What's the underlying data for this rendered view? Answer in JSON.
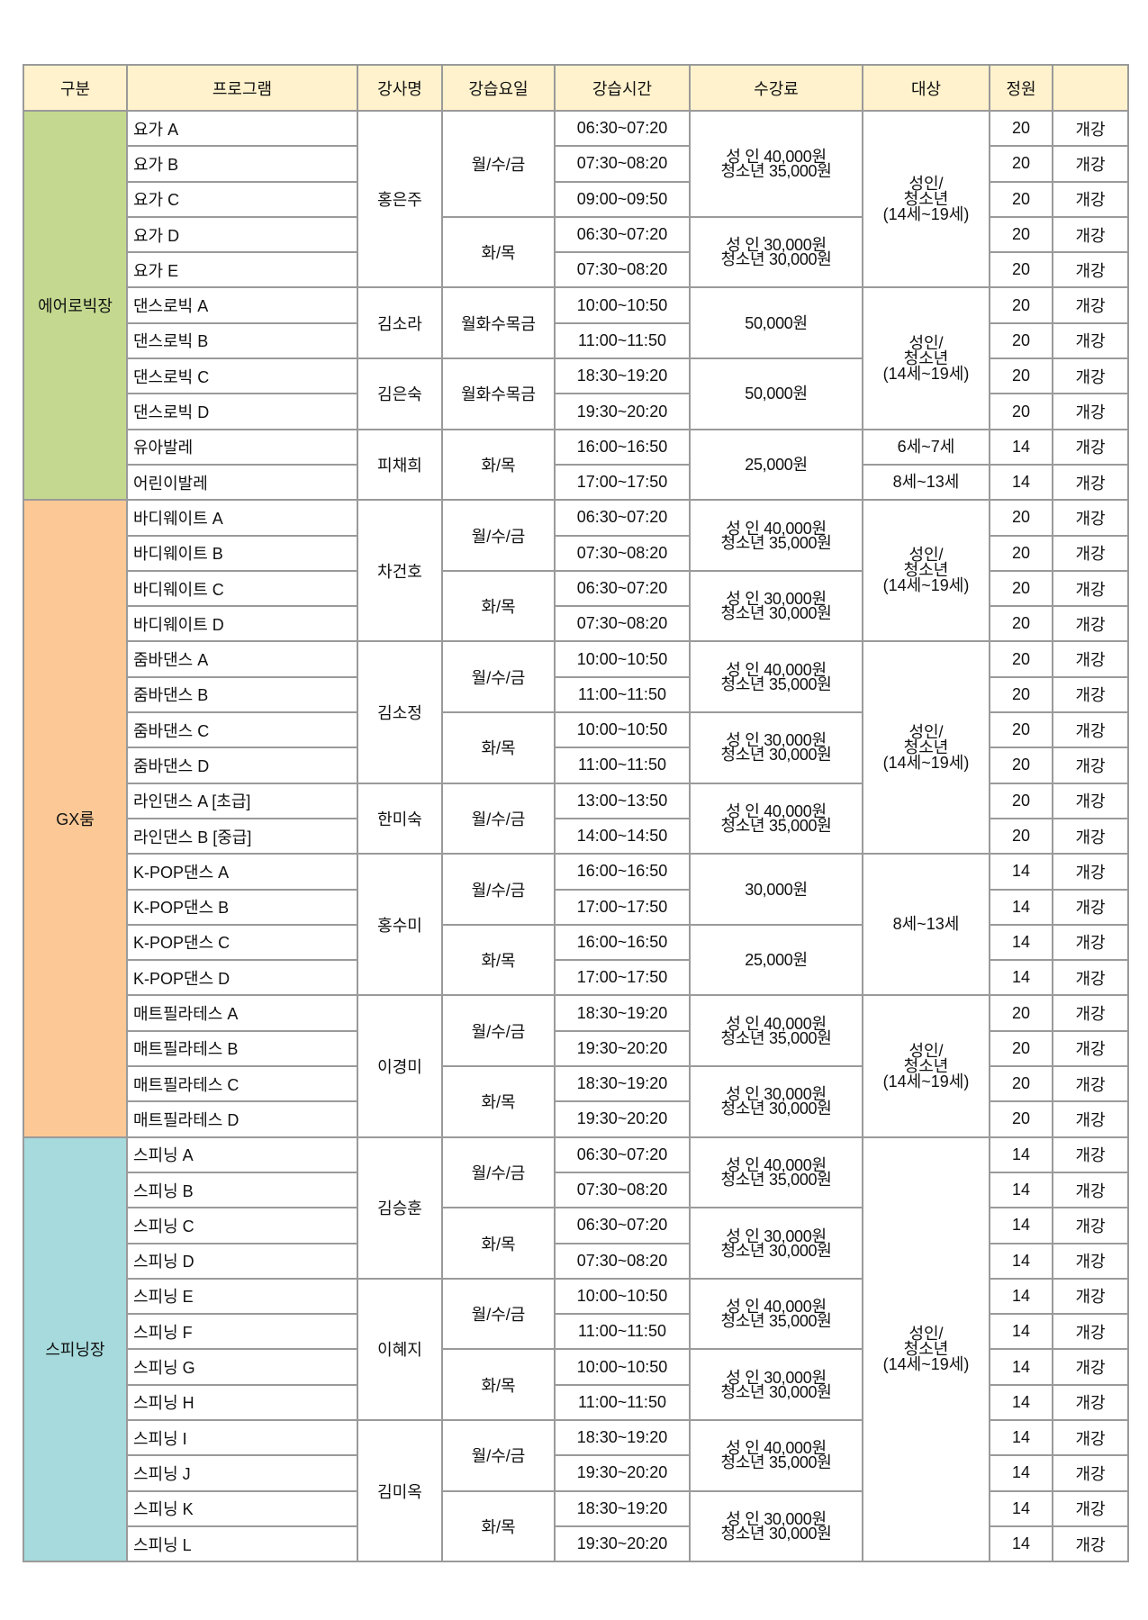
{
  "header": [
    "구분",
    "프로그램",
    "강사명",
    "강습요일",
    "강습시간",
    "수강료",
    "대상",
    "정원",
    ""
  ],
  "colors": {
    "header": "#fff2cc",
    "aerobic": "#c4d98f",
    "gx": "#fcc996",
    "spinning": "#a6dadc",
    "border": "#9a9a9a"
  },
  "sections": [
    {
      "name": "에어로빅장",
      "color": "#c4d98f",
      "rows": [
        {
          "program": "요가 A",
          "instructor": {
            "text": "홍은주",
            "span": 5
          },
          "days": {
            "text": "월/수/금",
            "span": 3
          },
          "time": "06:30~07:20",
          "fee": {
            "text": "성  인 40,000원\n청소년 35,000원",
            "span": 3
          },
          "target": {
            "text": "성인/\n청소년\n(14세~19세)",
            "span": 5
          },
          "capacity": "20",
          "status": "개강"
        },
        {
          "program": "요가 B",
          "time": "07:30~08:20",
          "capacity": "20",
          "status": "개강"
        },
        {
          "program": "요가 C",
          "time": "09:00~09:50",
          "capacity": "20",
          "status": "개강"
        },
        {
          "program": "요가 D",
          "days": {
            "text": "화/목",
            "span": 2
          },
          "time": "06:30~07:20",
          "fee": {
            "text": "성 인 30,000원\n청소년 30,000원",
            "span": 2
          },
          "capacity": "20",
          "status": "개강"
        },
        {
          "program": "요가 E",
          "time": "07:30~08:20",
          "capacity": "20",
          "status": "개강"
        },
        {
          "program": "댄스로빅 A",
          "instructor": {
            "text": "김소라",
            "span": 2
          },
          "days": {
            "text": "월화수목금",
            "span": 2
          },
          "time": "10:00~10:50",
          "fee": {
            "text": "50,000원",
            "span": 2
          },
          "target": {
            "text": "성인/\n청소년\n(14세~19세)",
            "span": 4
          },
          "capacity": "20",
          "status": "개강"
        },
        {
          "program": "댄스로빅 B",
          "time": "11:00~11:50",
          "capacity": "20",
          "status": "개강"
        },
        {
          "program": "댄스로빅 C",
          "instructor": {
            "text": "김은숙",
            "span": 2
          },
          "days": {
            "text": "월화수목금",
            "span": 2
          },
          "time": "18:30~19:20",
          "fee": {
            "text": "50,000원",
            "span": 2
          },
          "capacity": "20",
          "status": "개강"
        },
        {
          "program": "댄스로빅 D",
          "time": "19:30~20:20",
          "capacity": "20",
          "status": "개강"
        },
        {
          "program": "유아발레",
          "instructor": {
            "text": "피채희",
            "span": 2
          },
          "days": {
            "text": "화/목",
            "span": 2
          },
          "time": "16:00~16:50",
          "fee": {
            "text": "25,000원",
            "span": 2
          },
          "target": {
            "text": "6세~7세",
            "span": 1
          },
          "capacity": "14",
          "status": "개강"
        },
        {
          "program": "어린이발레",
          "time": "17:00~17:50",
          "target": {
            "text": "8세~13세",
            "span": 1
          },
          "capacity": "14",
          "status": "개강"
        }
      ]
    },
    {
      "name": "GX룸",
      "color": "#fcc996",
      "rows": [
        {
          "program": "바디웨이트 A",
          "instructor": {
            "text": "차건호",
            "span": 4
          },
          "days": {
            "text": "월/수/금",
            "span": 2
          },
          "time": "06:30~07:20",
          "fee": {
            "text": "성 인 40,000원\n청소년 35,000원",
            "span": 2
          },
          "target": {
            "text": "성인/\n청소년\n(14세~19세)",
            "span": 4
          },
          "capacity": "20",
          "status": "개강"
        },
        {
          "program": "바디웨이트 B",
          "time": "07:30~08:20",
          "capacity": "20",
          "status": "개강"
        },
        {
          "program": "바디웨이트 C",
          "days": {
            "text": "화/목",
            "span": 2
          },
          "time": "06:30~07:20",
          "fee": {
            "text": "성 인 30,000원\n청소년 30,000원",
            "span": 2
          },
          "capacity": "20",
          "status": "개강"
        },
        {
          "program": "바디웨이트 D",
          "time": "07:30~08:20",
          "capacity": "20",
          "status": "개강"
        },
        {
          "program": "줌바댄스 A",
          "instructor": {
            "text": "김소정",
            "span": 4
          },
          "days": {
            "text": "월/수/금",
            "span": 2
          },
          "time": "10:00~10:50",
          "fee": {
            "text": "성  인 40,000원\n청소년 35,000원",
            "span": 2
          },
          "target": {
            "text": "성인/\n청소년\n(14세~19세)",
            "span": 6
          },
          "capacity": "20",
          "status": "개강"
        },
        {
          "program": "줌바댄스 B",
          "time": "11:00~11:50",
          "capacity": "20",
          "status": "개강"
        },
        {
          "program": "줌바댄스 C",
          "days": {
            "text": "화/목",
            "span": 2
          },
          "time": "10:00~10:50",
          "fee": {
            "text": "성  인 30,000원\n청소년 30,000원",
            "span": 2
          },
          "capacity": "20",
          "status": "개강"
        },
        {
          "program": "줌바댄스 D",
          "time": "11:00~11:50",
          "capacity": "20",
          "status": "개강"
        },
        {
          "program": "라인댄스 A [초급]",
          "instructor": {
            "text": "한미숙",
            "span": 2
          },
          "days": {
            "text": "월/수/금",
            "span": 2
          },
          "time": "13:00~13:50",
          "fee": {
            "text": "성  인 40,000원\n청소년 35,000원",
            "span": 2
          },
          "capacity": "20",
          "status": "개강"
        },
        {
          "program": "라인댄스 B [중급]",
          "time": "14:00~14:50",
          "capacity": "20",
          "status": "개강"
        },
        {
          "program": "K-POP댄스 A",
          "instructor": {
            "text": "홍수미",
            "span": 4
          },
          "days": {
            "text": "월/수/금",
            "span": 2
          },
          "time": "16:00~16:50",
          "fee": {
            "text": "30,000원",
            "span": 2
          },
          "target": {
            "text": "8세~13세",
            "span": 4
          },
          "capacity": "14",
          "status": "개강"
        },
        {
          "program": "K-POP댄스 B",
          "time": "17:00~17:50",
          "capacity": "14",
          "status": "개강"
        },
        {
          "program": "K-POP댄스 C",
          "days": {
            "text": "화/목",
            "span": 2
          },
          "time": "16:00~16:50",
          "fee": {
            "text": "25,000원",
            "span": 2
          },
          "capacity": "14",
          "status": "개강"
        },
        {
          "program": "K-POP댄스 D",
          "time": "17:00~17:50",
          "capacity": "14",
          "status": "개강"
        },
        {
          "program": "매트필라테스 A",
          "instructor": {
            "text": "이경미",
            "span": 4
          },
          "days": {
            "text": "월/수/금",
            "span": 2
          },
          "time": "18:30~19:20",
          "fee": {
            "text": "성 인 40,000원\n청소년 35,000원",
            "span": 2
          },
          "target": {
            "text": "성인/\n청소년\n(14세~19세)",
            "span": 4
          },
          "capacity": "20",
          "status": "개강"
        },
        {
          "program": "매트필라테스 B",
          "time": "19:30~20:20",
          "capacity": "20",
          "status": "개강"
        },
        {
          "program": "매트필라테스 C",
          "days": {
            "text": "화/목",
            "span": 2
          },
          "time": "18:30~19:20",
          "fee": {
            "text": "성 인 30,000원\n청소년 30,000원",
            "span": 2
          },
          "capacity": "20",
          "status": "개강"
        },
        {
          "program": "매트필라테스 D",
          "time": "19:30~20:20",
          "capacity": "20",
          "status": "개강"
        }
      ]
    },
    {
      "name": "스피닝장",
      "color": "#a6dadc",
      "rows": [
        {
          "program": "스피닝 A",
          "instructor": {
            "text": "김승훈",
            "span": 4
          },
          "days": {
            "text": "월/수/금",
            "span": 2
          },
          "time": "06:30~07:20",
          "fee": {
            "text": "성 인 40,000원\n청소년 35,000원",
            "span": 2
          },
          "target": {
            "text": "성인/\n청소년\n(14세~19세)",
            "span": 12
          },
          "capacity": "14",
          "status": "개강"
        },
        {
          "program": "스피닝 B",
          "time": "07:30~08:20",
          "capacity": "14",
          "status": "개강"
        },
        {
          "program": "스피닝 C",
          "days": {
            "text": "화/목",
            "span": 2
          },
          "time": "06:30~07:20",
          "fee": {
            "text": "성 인 30,000원\n청소년 30,000원",
            "span": 2
          },
          "capacity": "14",
          "status": "개강"
        },
        {
          "program": "스피닝 D",
          "time": "07:30~08:20",
          "capacity": "14",
          "status": "개강"
        },
        {
          "program": "스피닝 E",
          "instructor": {
            "text": "이혜지",
            "span": 4
          },
          "days": {
            "text": "월/수/금",
            "span": 2
          },
          "time": "10:00~10:50",
          "fee": {
            "text": "성 인 40,000원\n청소년 35,000원",
            "span": 2
          },
          "capacity": "14",
          "status": "개강"
        },
        {
          "program": "스피닝 F",
          "time": "11:00~11:50",
          "capacity": "14",
          "status": "개강"
        },
        {
          "program": "스피닝 G",
          "days": {
            "text": "화/목",
            "span": 2
          },
          "time": "10:00~10:50",
          "fee": {
            "text": "성 인 30,000원\n청소년 30,000원",
            "span": 2
          },
          "capacity": "14",
          "status": "개강"
        },
        {
          "program": "스피닝 H",
          "time": "11:00~11:50",
          "capacity": "14",
          "status": "개강"
        },
        {
          "program": "스피닝 I",
          "instructor": {
            "text": "김미옥",
            "span": 4
          },
          "days": {
            "text": "월/수/금",
            "span": 2
          },
          "time": "18:30~19:20",
          "fee": {
            "text": "성 인 40,000원\n청소년 35,000원",
            "span": 2
          },
          "capacity": "14",
          "status": "개강"
        },
        {
          "program": "스피닝 J",
          "time": "19:30~20:20",
          "capacity": "14",
          "status": "개강"
        },
        {
          "program": "스피닝 K",
          "days": {
            "text": "화/목",
            "span": 2
          },
          "time": "18:30~19:20",
          "fee": {
            "text": "성 인 30,000원\n청소년 30,000원",
            "span": 2
          },
          "capacity": "14",
          "status": "개강"
        },
        {
          "program": "스피닝 L",
          "time": "19:30~20:20",
          "capacity": "14",
          "status": "개강"
        }
      ]
    }
  ]
}
